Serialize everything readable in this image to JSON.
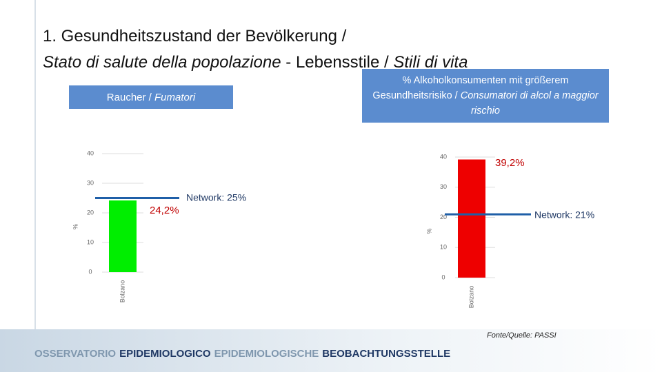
{
  "slide": {
    "title_line1": "1. Gesundheitszustand der Bevölkerung /",
    "title_line2_it": "Stato di salute della popolazione",
    "title_sep": "-",
    "title_line2_de": "Lebensstile /",
    "title_line2_it2": "Stili di vita",
    "source": "Fonte/Quelle: PASSI",
    "footer": [
      {
        "text": "OSSERVATORIO",
        "color": "#7f97ae"
      },
      {
        "text": "EPIDEMIOLOGICO",
        "color": "#1f3864"
      },
      {
        "text": "EPIDEMIOLOGISCHE",
        "color": "#7f97ae"
      },
      {
        "text": "BEOBACHTUNGSSTELLE",
        "color": "#1f3864"
      }
    ]
  },
  "chart_data": [
    {
      "type": "bar",
      "title_de": "Raucher /",
      "title_it": "Fumatori",
      "categories": [
        "Bolzano"
      ],
      "values": [
        24.2
      ],
      "value_labels": [
        "24,2%"
      ],
      "color": "#00ee00",
      "y_label": "%",
      "ylim": [
        0,
        40
      ],
      "yticks": [
        0,
        10,
        20,
        30,
        40
      ],
      "grid": true,
      "reference": {
        "value": 25,
        "label": "Network: 25%",
        "color": "#1f5fa8"
      }
    },
    {
      "type": "bar",
      "title_de": "% Alkoholkonsumenten mit größerem Gesundheitsrisiko /",
      "title_it": "Consumatori di alcol a maggior rischio",
      "categories": [
        "Bolzano"
      ],
      "values": [
        39.2
      ],
      "value_labels": [
        "39,2%"
      ],
      "color": "#ee0000",
      "y_label": "%",
      "ylim": [
        0,
        40
      ],
      "yticks": [
        0,
        10,
        20,
        30,
        40
      ],
      "grid": true,
      "reference": {
        "value": 21,
        "label": "Network: 21%",
        "color": "#1f5fa8"
      }
    }
  ]
}
